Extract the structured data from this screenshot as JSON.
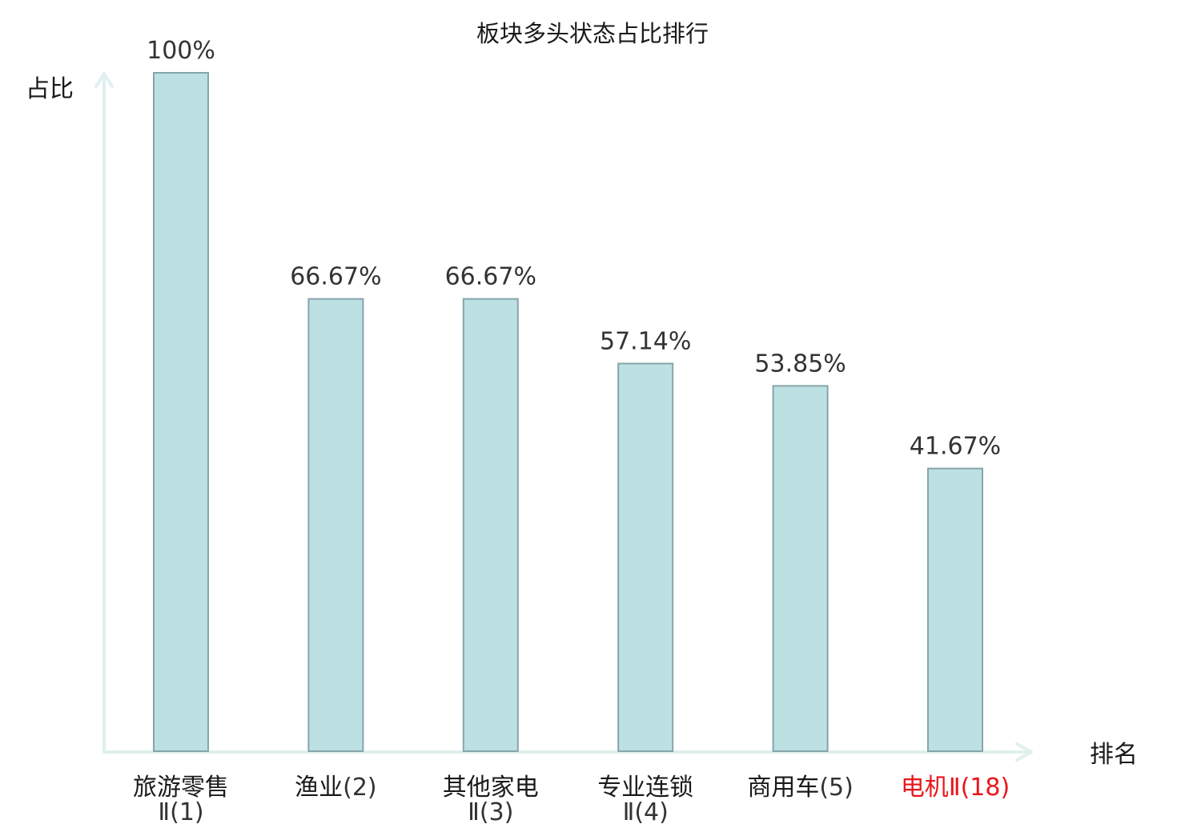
{
  "chart_data": {
    "type": "bar",
    "title": "板块多头状态占比排行",
    "ylabel": "占比",
    "xlabel": "排名",
    "ylim": [
      0,
      100
    ],
    "grid": false,
    "categories": [
      {
        "name": "旅游零售",
        "suffix": "Ⅱ(1)",
        "highlight": false
      },
      {
        "name": "渔业",
        "suffix": "(2)",
        "highlight": false
      },
      {
        "name": "其他家电",
        "suffix": "Ⅱ(3)",
        "highlight": false
      },
      {
        "name": "专业连锁",
        "suffix": "Ⅱ(4)",
        "highlight": false
      },
      {
        "name": "商用车",
        "suffix": "(5)",
        "highlight": false
      },
      {
        "name": "电机",
        "suffix": "Ⅱ(18)",
        "highlight": true
      }
    ],
    "values": [
      100,
      66.67,
      66.67,
      57.14,
      53.85,
      41.67
    ],
    "value_labels": [
      "100%",
      "66.67%",
      "66.67%",
      "57.14%",
      "53.85%",
      "41.67%"
    ]
  },
  "colors": {
    "bar_fill": "#bde0e3",
    "bar_stroke": "#86a5a9",
    "axis": "#dff0ee",
    "highlight": "#e8161b",
    "text": "#1a1a1a",
    "suffix_text": "#333333"
  }
}
